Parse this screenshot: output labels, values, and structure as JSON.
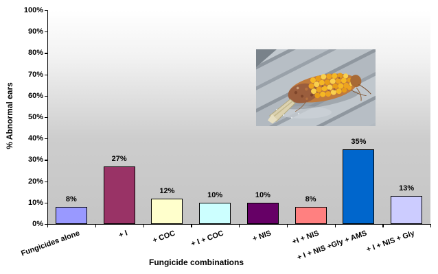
{
  "chart_data": {
    "type": "bar",
    "title": "",
    "xlabel": "Fungicide combinations",
    "ylabel": "% Abnormal ears",
    "categories": [
      "Fungicides alone",
      "+ I",
      "+ COC",
      "+ I + COC",
      "+ NIS",
      "+I + NIS",
      "+ I + NIS +Gly + AMS",
      "+ I + NIS + Gly"
    ],
    "values": [
      8,
      27,
      12,
      10,
      10,
      8,
      35,
      13
    ],
    "data_labels": [
      "8%",
      "27%",
      "12%",
      "10%",
      "10%",
      "8%",
      "35%",
      "13%"
    ],
    "bar_colors": [
      "#9999FF",
      "#993366",
      "#FFFFCC",
      "#CCFFFF",
      "#660066",
      "#FF8080",
      "#0066CC",
      "#CCCCFF"
    ],
    "bar_border_color": "#000000",
    "ylim": [
      0,
      100
    ],
    "ytick_step": 10,
    "ytick_labels": [
      "0%",
      "10%",
      "20%",
      "30%",
      "40%",
      "50%",
      "60%",
      "70%",
      "80%",
      "90%",
      "100%"
    ],
    "gridlines": false,
    "legend": "none",
    "plot_bg_gradient_top": "#FFFFFF",
    "plot_bg_gradient_bottom": "#C5C5C5",
    "page_bg": "#FFFFFF"
  },
  "inset_photo": {
    "label": "abnormal corn ear photo"
  }
}
